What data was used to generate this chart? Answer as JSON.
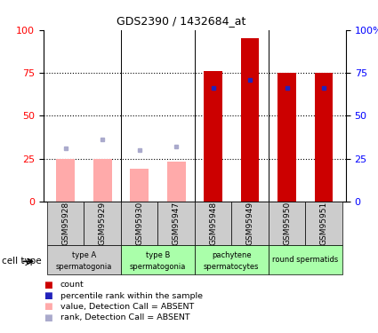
{
  "title": "GDS2390 / 1432684_at",
  "samples": [
    "GSM95928",
    "GSM95929",
    "GSM95930",
    "GSM95947",
    "GSM95948",
    "GSM95949",
    "GSM95950",
    "GSM95951"
  ],
  "count_values": [
    25,
    25,
    19,
    23,
    76,
    95,
    75,
    75
  ],
  "percentile_values": [
    31,
    36,
    30,
    32,
    66,
    71,
    66,
    66
  ],
  "absent_flags": [
    true,
    true,
    true,
    true,
    false,
    false,
    false,
    false
  ],
  "yticks": [
    0,
    25,
    50,
    75,
    100
  ],
  "bar_width": 0.5,
  "color_count_present": "#cc0000",
  "color_count_absent": "#ffaaaa",
  "color_percentile_present": "#2222bb",
  "color_percentile_absent": "#aaaacc",
  "group_info": [
    {
      "start": 0,
      "end": 2,
      "label_top": "type A",
      "label_bot": "spermatogonia",
      "color": "#cccccc"
    },
    {
      "start": 2,
      "end": 4,
      "label_top": "type B",
      "label_bot": "spermatogonia",
      "color": "#aaffaa"
    },
    {
      "start": 4,
      "end": 6,
      "label_top": "pachytene",
      "label_bot": "spermatocytes",
      "color": "#aaffaa"
    },
    {
      "start": 6,
      "end": 8,
      "label_top": "round spermatids",
      "label_bot": "",
      "color": "#aaffaa"
    }
  ],
  "legend_items": [
    {
      "label": "count",
      "color": "#cc0000"
    },
    {
      "label": "percentile rank within the sample",
      "color": "#2222bb"
    },
    {
      "label": "value, Detection Call = ABSENT",
      "color": "#ffaaaa"
    },
    {
      "label": "rank, Detection Call = ABSENT",
      "color": "#aaaacc"
    }
  ]
}
